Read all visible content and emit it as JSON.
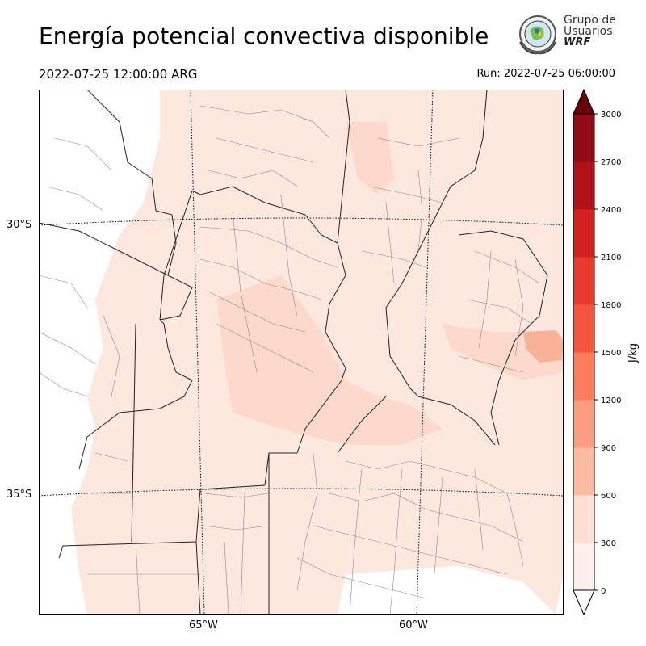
{
  "header": {
    "title": "Energía potencial convectiva disponible",
    "valid_time": "2022-07-25 12:00:00 ARG",
    "run_time": "Run: 2022-07-25 06:00:00"
  },
  "logo": {
    "line1": "Grupo de",
    "line2": "Usuarios",
    "line3": "WRF"
  },
  "map": {
    "lat_labels": [
      "30°S",
      "35°S"
    ],
    "lon_labels": [
      "65°W",
      "60°W"
    ],
    "field_colors": [
      "#fde8df",
      "#fcd9cb",
      "#fbc8b3",
      "#f6a68a"
    ]
  },
  "colorbar": {
    "label": "J/kg",
    "ticks": [
      "0",
      "300",
      "600",
      "900",
      "1200",
      "1500",
      "1800",
      "2100",
      "2400",
      "2700",
      "3000"
    ],
    "colors": [
      "#fff0eb",
      "#fde0d3",
      "#fcbba1",
      "#fc9d7f",
      "#fb7d5d",
      "#f5553d",
      "#e83a2d",
      "#d1221f",
      "#b01217",
      "#920a13"
    ],
    "under_color": "#ffffff",
    "over_color": "#67000d"
  }
}
